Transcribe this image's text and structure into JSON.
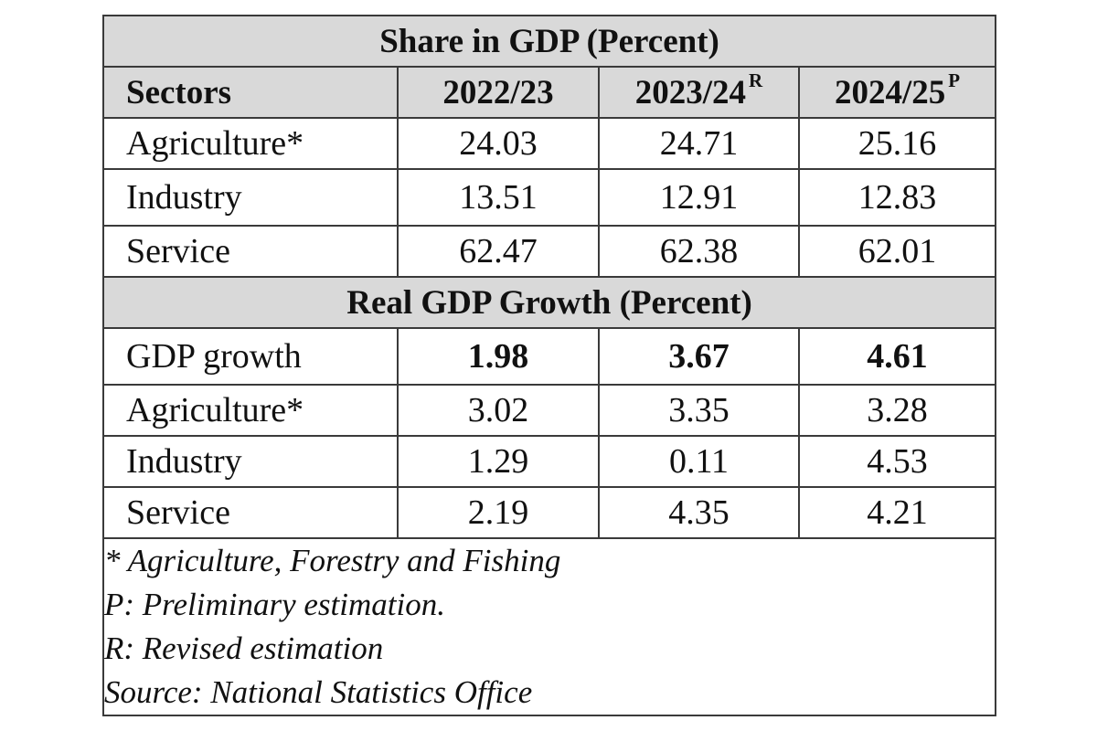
{
  "table": {
    "share_title": "Share in GDP (Percent)",
    "headers": {
      "sectors": "Sectors",
      "years": [
        {
          "label": "2022/23",
          "mark": ""
        },
        {
          "label": "2023/24",
          "mark": "R"
        },
        {
          "label": "2024/25",
          "mark": "P"
        }
      ]
    },
    "share_rows": [
      {
        "label": "Agriculture*",
        "values": [
          "24.03",
          "24.71",
          "25.16"
        ]
      },
      {
        "label": "Industry",
        "values": [
          "13.51",
          "12.91",
          "12.83"
        ]
      },
      {
        "label": "Service",
        "values": [
          "62.47",
          "62.38",
          "62.01"
        ]
      }
    ],
    "growth_title": "Real GDP Growth (Percent)",
    "growth_rows": [
      {
        "label": "GDP growth",
        "values": [
          "1.98",
          "3.67",
          "4.61"
        ],
        "bold": true
      },
      {
        "label": "Agriculture*",
        "values": [
          "3.02",
          "3.35",
          "3.28"
        ]
      },
      {
        "label": "Industry",
        "values": [
          "1.29",
          "0.11",
          "4.53"
        ]
      },
      {
        "label": "Service",
        "values": [
          "2.19",
          "4.35",
          "4.21"
        ]
      }
    ],
    "notes": [
      "* Agriculture, Forestry and Fishing",
      "P: Preliminary estimation.",
      "R: Revised estimation",
      "Source: National Statistics Office"
    ]
  }
}
